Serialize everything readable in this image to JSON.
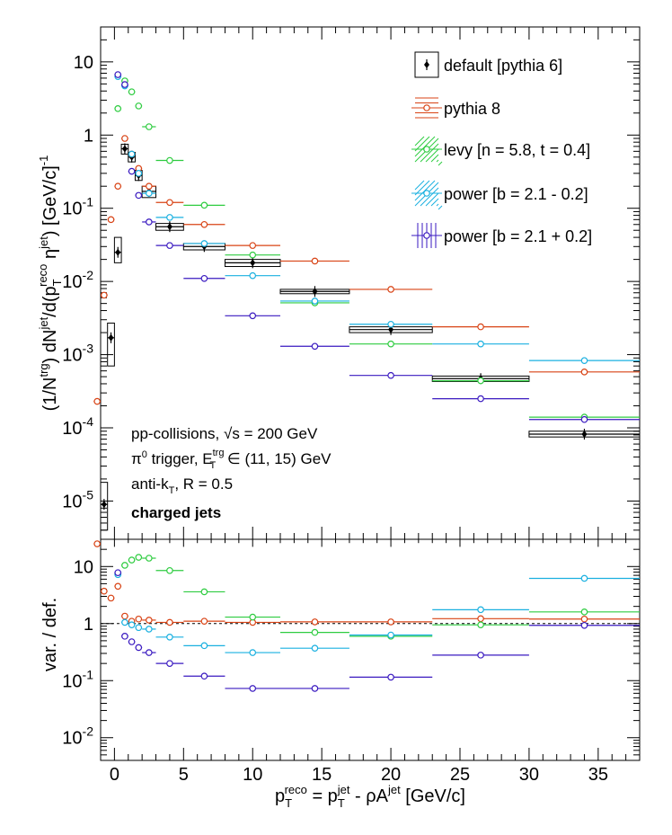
{
  "chart_data": [
    {
      "type": "scatter",
      "panel": "top",
      "y_scale": "log",
      "xlim": [
        -1,
        38
      ],
      "ylim": [
        3e-06,
        30
      ],
      "ylabel_parts": [
        "(1/N",
        "trg",
        ") dN",
        "jet",
        "/d(p",
        "T",
        "reco",
        " η",
        "jet",
        ") [GeV/c]",
        "-1"
      ],
      "ytick_values": [
        1e-05,
        0.0001,
        0.001,
        0.01,
        0.1,
        1,
        10
      ],
      "ytick_exponents": [
        "-5",
        "-4",
        "-3",
        "-2",
        "-1",
        "",
        ""
      ],
      "ytick_plain": [
        "",
        "",
        "",
        "",
        "",
        "1",
        "10"
      ],
      "annotations": {
        "line1": "pp-collisions,",
        "line1_sqrt": "√s",
        "line1_tail": " = 200 GeV",
        "line2_pre": "π",
        "line2_zero": "0",
        "line2_mid": " trigger, E",
        "line2_sup": "trg",
        "line2_sub": "T",
        "line2_tail": " ∈ (11, 15) GeV",
        "line3_pre": "anti-k",
        "line3_sub": "T",
        "line3_tail": ", R = 0.5",
        "line4": "charged jets"
      },
      "legend": [
        {
          "label": "default [pythia 6]",
          "color": "#000000",
          "style": "box-dot"
        },
        {
          "label": "pythia 8",
          "color": "#d84315",
          "style": "lines-circle"
        },
        {
          "label": "levy [n = 5.8, t = 0.4]",
          "color": "#2ecc40",
          "style": "hatch-circle"
        },
        {
          "label": "power [b = 2.1 - 0.2]",
          "color": "#1ab0e0",
          "style": "hatch-circle"
        },
        {
          "label": "power [b = 2.1 + 0.2]",
          "color": "#3a1ac0",
          "style": "vlines-circle"
        }
      ],
      "series": [
        {
          "name": "default [pythia 6]",
          "color": "#000000",
          "x": [
            -0.75,
            -0.25,
            0.25,
            0.75,
            1.25,
            1.75,
            2.5,
            4,
            6.5,
            10,
            14.5,
            20,
            26.5,
            34
          ],
          "xerr": [
            0.25,
            0.25,
            0.25,
            0.25,
            0.25,
            0.25,
            0.5,
            1,
            1.5,
            2,
            2.5,
            3,
            3.5,
            4
          ],
          "y": [
            9e-06,
            0.0017,
            0.025,
            0.65,
            0.5,
            0.28,
            0.17,
            0.056,
            0.03,
            0.018,
            0.0073,
            0.0022,
            0.00047,
            8.2e-05
          ],
          "ylo": [
            4e-06,
            0.0007,
            0.018,
            0.55,
            0.43,
            0.24,
            0.14,
            0.05,
            0.027,
            0.016,
            0.0068,
            0.002,
            0.00043,
            7.5e-05
          ],
          "yhi": [
            1.8e-05,
            0.0027,
            0.04,
            0.75,
            0.58,
            0.33,
            0.2,
            0.062,
            0.033,
            0.02,
            0.0078,
            0.0024,
            0.00051,
            9e-05
          ]
        },
        {
          "name": "pythia 8",
          "color": "#d84315",
          "x": [
            -1.25,
            -0.75,
            -0.25,
            0.25,
            0.75,
            1.25,
            1.75,
            2.5,
            4,
            6.5,
            10,
            14.5,
            20,
            26.5,
            34
          ],
          "xerr": [
            0.25,
            0.25,
            0.25,
            0.25,
            0.25,
            0.25,
            0.25,
            0.5,
            1,
            1.5,
            2,
            2.5,
            3,
            3.5,
            4
          ],
          "y": [
            0.00023,
            0.0065,
            0.07,
            0.2,
            0.9,
            0.55,
            0.35,
            0.2,
            0.12,
            0.06,
            0.031,
            0.019,
            0.0078,
            0.0024,
            0.00058
          ]
        },
        {
          "name": "levy [n = 5.8, t = 0.4]",
          "color": "#2ecc40",
          "x": [
            0.25,
            0.75,
            1.25,
            1.75,
            2.5,
            4,
            6.5,
            10,
            14.5,
            20,
            26.5,
            34
          ],
          "xerr": [
            0.25,
            0.25,
            0.25,
            0.25,
            0.5,
            1,
            1.5,
            2,
            2.5,
            3,
            3.5,
            4
          ],
          "y": [
            2.3,
            5.5,
            3.9,
            2.5,
            1.3,
            0.45,
            0.11,
            0.023,
            0.0051,
            0.0014,
            0.00044,
            0.00014
          ]
        },
        {
          "name": "power [b = 2.1 - 0.2]",
          "color": "#1ab0e0",
          "x": [
            0.25,
            0.75,
            1.25,
            1.75,
            2.5,
            4,
            6.5,
            10,
            14.5,
            20,
            26.5,
            34
          ],
          "xerr": [
            0.25,
            0.25,
            0.25,
            0.25,
            0.5,
            1,
            1.5,
            2,
            2.5,
            3,
            3.5,
            4
          ],
          "y": [
            6.3,
            4.7,
            0.55,
            0.3,
            0.16,
            0.075,
            0.033,
            0.012,
            0.0054,
            0.0026,
            0.0014,
            0.00083
          ]
        },
        {
          "name": "power [b = 2.1 + 0.2]",
          "color": "#3a1ac0",
          "x": [
            0.25,
            0.75,
            1.25,
            1.75,
            2.5,
            4,
            6.5,
            10,
            14.5,
            20,
            26.5,
            34
          ],
          "xerr": [
            0.25,
            0.25,
            0.25,
            0.25,
            0.5,
            1,
            1.5,
            2,
            2.5,
            3,
            3.5,
            4
          ],
          "y": [
            6.7,
            4.9,
            0.32,
            0.15,
            0.065,
            0.031,
            0.011,
            0.0034,
            0.0013,
            0.00052,
            0.00025,
            0.00013
          ]
        }
      ]
    },
    {
      "type": "scatter",
      "panel": "ratio",
      "y_scale": "log",
      "xlim": [
        -1,
        38
      ],
      "ylim": [
        0.004,
        30
      ],
      "ylabel": "var. / def.",
      "xlabel_parts": [
        "p",
        "T",
        "reco",
        " = p",
        "T",
        "jet",
        " - ρA",
        "jet",
        " [GeV/c]"
      ],
      "xticks": [
        0,
        5,
        10,
        15,
        20,
        25,
        30,
        35
      ],
      "ytick_values": [
        0.01,
        0.1,
        1,
        10
      ],
      "ytick_exponents": [
        "-2",
        "-1",
        "",
        ""
      ],
      "ytick_plain": [
        "",
        "",
        "1",
        "10"
      ],
      "reference_line": 1,
      "series": [
        {
          "name": "pythia 8",
          "color": "#d84315",
          "x": [
            -1.25,
            -0.75,
            -0.25,
            0.25,
            0.75,
            1.25,
            1.75,
            2.5,
            4,
            6.5,
            10,
            14.5,
            20,
            26.5,
            34
          ],
          "xerr": [
            0.25,
            0.25,
            0.25,
            0.25,
            0.25,
            0.25,
            0.25,
            0.5,
            1,
            1.5,
            2,
            2.5,
            3,
            3.5,
            4
          ],
          "y": [
            25,
            3.7,
            2.8,
            4.5,
            1.35,
            1.1,
            1.2,
            1.15,
            1.05,
            1.1,
            1.05,
            1.07,
            1.07,
            1.22,
            1.2
          ]
        },
        {
          "name": "levy [n = 5.8, t = 0.4]",
          "color": "#2ecc40",
          "x": [
            0.25,
            0.75,
            1.25,
            1.75,
            2.5,
            4,
            6.5,
            10,
            14.5,
            20,
            26.5,
            34
          ],
          "xerr": [
            0.25,
            0.25,
            0.25,
            0.25,
            0.5,
            1,
            1.5,
            2,
            2.5,
            3,
            3.5,
            4
          ],
          "y": [
            7.5,
            10.5,
            13,
            14.5,
            14,
            8.5,
            3.6,
            1.3,
            0.7,
            0.6,
            0.95,
            1.6
          ]
        },
        {
          "name": "power [b = 2.1 - 0.2]",
          "color": "#1ab0e0",
          "x": [
            0.25,
            0.75,
            1.25,
            1.75,
            2.5,
            4,
            6.5,
            10,
            14.5,
            20,
            26.5,
            34
          ],
          "xerr": [
            0.25,
            0.25,
            0.25,
            0.25,
            0.5,
            1,
            1.5,
            2,
            2.5,
            3,
            3.5,
            4
          ],
          "y": [
            7.2,
            1.05,
            0.95,
            0.85,
            0.8,
            0.58,
            0.41,
            0.31,
            0.37,
            0.63,
            1.75,
            6.2
          ]
        },
        {
          "name": "power [b = 2.1 + 0.2]",
          "color": "#3a1ac0",
          "x": [
            0.25,
            0.75,
            1.25,
            1.75,
            2.5,
            4,
            6.5,
            10,
            14.5,
            20,
            26.5,
            34
          ],
          "xerr": [
            0.25,
            0.25,
            0.25,
            0.25,
            0.5,
            1,
            1.5,
            2,
            2.5,
            3,
            3.5,
            4
          ],
          "y": [
            7.8,
            0.6,
            0.48,
            0.38,
            0.31,
            0.2,
            0.12,
            0.073,
            0.073,
            0.115,
            0.28,
            0.93
          ]
        }
      ]
    }
  ]
}
